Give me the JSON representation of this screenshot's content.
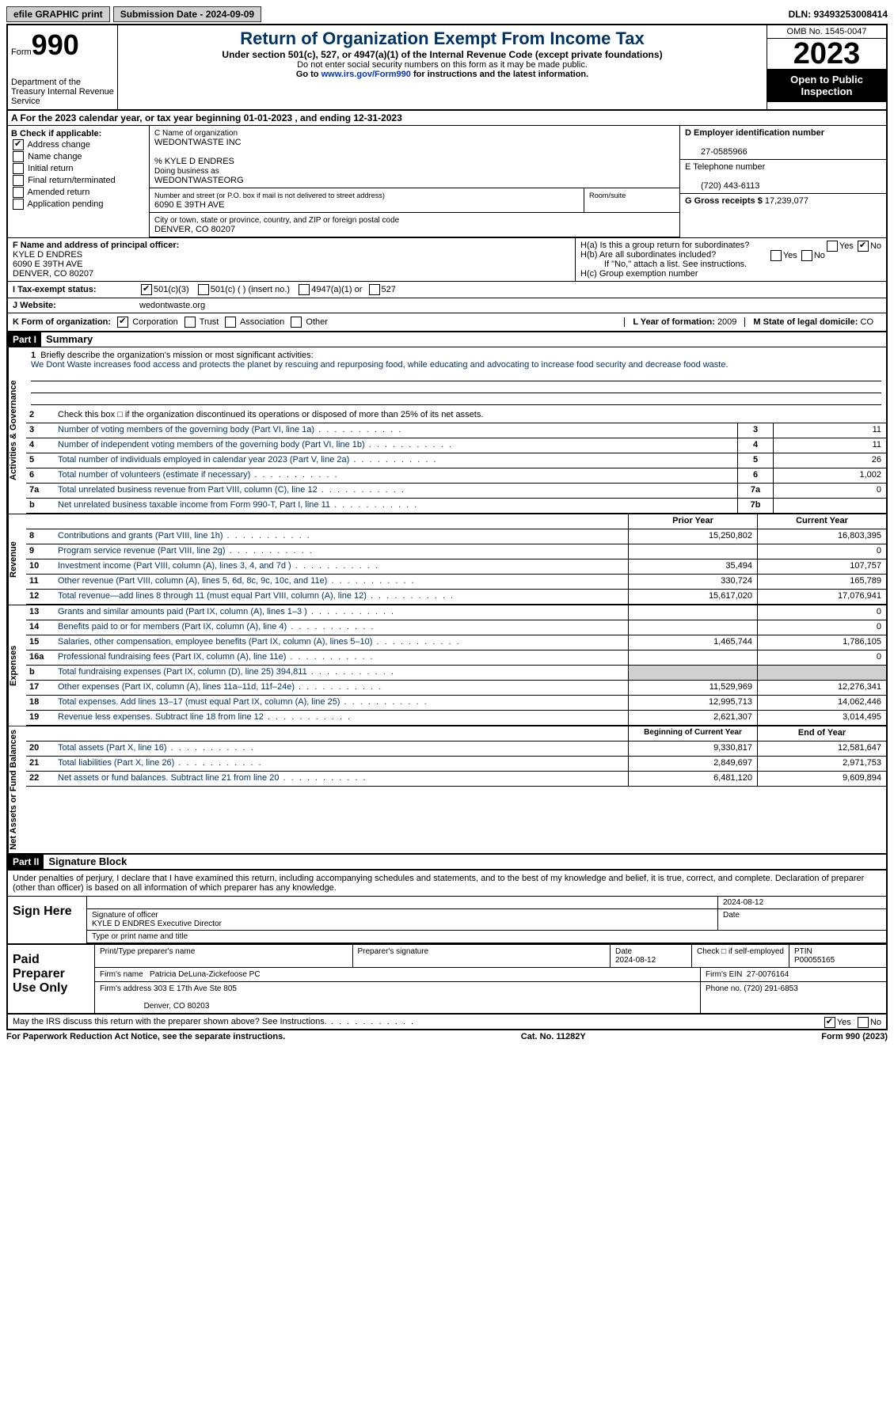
{
  "top": {
    "efile": "efile GRAPHIC print",
    "submission": "Submission Date - 2024-09-09",
    "dln": "DLN: 93493253008414"
  },
  "header": {
    "form_word": "Form",
    "form_num": "990",
    "dept": "Department of the Treasury Internal Revenue Service",
    "title": "Return of Organization Exempt From Income Tax",
    "sub1": "Under section 501(c), 527, or 4947(a)(1) of the Internal Revenue Code (except private foundations)",
    "sub2": "Do not enter social security numbers on this form as it may be made public.",
    "sub3_pre": "Go to ",
    "sub3_link": "www.irs.gov/Form990",
    "sub3_post": " for instructions and the latest information.",
    "omb": "OMB No. 1545-0047",
    "year": "2023",
    "open": "Open to Public Inspection"
  },
  "row_a": "A For the 2023 calendar year, or tax year beginning 01-01-2023    , and ending 12-31-2023",
  "b": {
    "label": "B Check if applicable:",
    "address_change": "Address change",
    "name_change": "Name change",
    "initial_return": "Initial return",
    "final_return": "Final return/terminated",
    "amended": "Amended return",
    "app_pending": "Application pending"
  },
  "c": {
    "name_label": "C Name of organization",
    "name": "WEDONTWASTE INC",
    "care_of": "% KYLE D ENDRES",
    "dba_label": "Doing business as",
    "dba": "WEDONTWASTEORG",
    "street_label": "Number and street (or P.O. box if mail is not delivered to street address)",
    "street": "6090 E 39TH AVE",
    "room_label": "Room/suite",
    "city_label": "City or town, state or province, country, and ZIP or foreign postal code",
    "city": "DENVER, CO  80207"
  },
  "d": {
    "label": "D Employer identification number",
    "value": "27-0585966"
  },
  "e": {
    "label": "E Telephone number",
    "value": "(720) 443-6113"
  },
  "g": {
    "label": "G Gross receipts $",
    "value": "17,239,077"
  },
  "f": {
    "label": "F Name and address of principal officer:",
    "name": "KYLE D ENDRES",
    "street": "6090 E 39TH AVE",
    "city": "DENVER, CO  80207"
  },
  "h": {
    "a": "H(a)  Is this a group return for subordinates?",
    "b": "H(b)  Are all subordinates included?",
    "note": "If \"No,\" attach a list. See instructions.",
    "c": "H(c)  Group exemption number"
  },
  "i": {
    "label": "I   Tax-exempt status:",
    "c3": "501(c)(3)",
    "c": "501(c) (  ) (insert no.)",
    "a1": "4947(a)(1) or",
    "s527": "527"
  },
  "j": {
    "label": "J   Website:",
    "value": "wedontwaste.org"
  },
  "k": {
    "label": "K Form of organization:",
    "corp": "Corporation",
    "trust": "Trust",
    "assoc": "Association",
    "other": "Other"
  },
  "l": {
    "label": "L Year of formation: ",
    "value": "2009"
  },
  "m": {
    "label": "M State of legal domicile: ",
    "value": "CO"
  },
  "part1": {
    "tag": "Part I",
    "title": "Summary"
  },
  "mission": {
    "num": "1",
    "label": "Briefly describe the organization's mission or most significant activities:",
    "text": "We Dont Waste increases food access and protects the planet by rescuing and repurposing food, while educating and advocating to increase food security and decrease food waste."
  },
  "line2": "Check this box □  if the organization discontinued its operations or disposed of more than 25% of its net assets.",
  "gov_rows": [
    {
      "n": "3",
      "t": "Number of voting members of the governing body (Part VI, line 1a)",
      "box": "3",
      "v": "11"
    },
    {
      "n": "4",
      "t": "Number of independent voting members of the governing body (Part VI, line 1b)",
      "box": "4",
      "v": "11"
    },
    {
      "n": "5",
      "t": "Total number of individuals employed in calendar year 2023 (Part V, line 2a)",
      "box": "5",
      "v": "26"
    },
    {
      "n": "6",
      "t": "Total number of volunteers (estimate if necessary)",
      "box": "6",
      "v": "1,002"
    },
    {
      "n": "7a",
      "t": "Total unrelated business revenue from Part VIII, column (C), line 12",
      "box": "7a",
      "v": "0"
    },
    {
      "n": "b",
      "t": "Net unrelated business taxable income from Form 990-T, Part I, line 11",
      "box": "7b",
      "v": ""
    }
  ],
  "rev_hdr": {
    "py": "Prior Year",
    "cy": "Current Year"
  },
  "rev_rows": [
    {
      "n": "8",
      "t": "Contributions and grants (Part VIII, line 1h)",
      "py": "15,250,802",
      "cy": "16,803,395"
    },
    {
      "n": "9",
      "t": "Program service revenue (Part VIII, line 2g)",
      "py": "",
      "cy": "0"
    },
    {
      "n": "10",
      "t": "Investment income (Part VIII, column (A), lines 3, 4, and 7d )",
      "py": "35,494",
      "cy": "107,757"
    },
    {
      "n": "11",
      "t": "Other revenue (Part VIII, column (A), lines 5, 6d, 8c, 9c, 10c, and 11e)",
      "py": "330,724",
      "cy": "165,789"
    },
    {
      "n": "12",
      "t": "Total revenue—add lines 8 through 11 (must equal Part VIII, column (A), line 12)",
      "py": "15,617,020",
      "cy": "17,076,941"
    }
  ],
  "exp_rows": [
    {
      "n": "13",
      "t": "Grants and similar amounts paid (Part IX, column (A), lines 1–3 )",
      "py": "",
      "cy": "0"
    },
    {
      "n": "14",
      "t": "Benefits paid to or for members (Part IX, column (A), line 4)",
      "py": "",
      "cy": "0"
    },
    {
      "n": "15",
      "t": "Salaries, other compensation, employee benefits (Part IX, column (A), lines 5–10)",
      "py": "1,465,744",
      "cy": "1,786,105"
    },
    {
      "n": "16a",
      "t": "Professional fundraising fees (Part IX, column (A), line 11e)",
      "py": "",
      "cy": "0"
    },
    {
      "n": "b",
      "t": "Total fundraising expenses (Part IX, column (D), line 25) 394,811",
      "py": "grey",
      "cy": "grey"
    },
    {
      "n": "17",
      "t": "Other expenses (Part IX, column (A), lines 11a–11d, 11f–24e)",
      "py": "11,529,969",
      "cy": "12,276,341"
    },
    {
      "n": "18",
      "t": "Total expenses. Add lines 13–17 (must equal Part IX, column (A), line 25)",
      "py": "12,995,713",
      "cy": "14,062,446"
    },
    {
      "n": "19",
      "t": "Revenue less expenses. Subtract line 18 from line 12",
      "py": "2,621,307",
      "cy": "3,014,495"
    }
  ],
  "net_hdr": {
    "py": "Beginning of Current Year",
    "cy": "End of Year"
  },
  "net_rows": [
    {
      "n": "20",
      "t": "Total assets (Part X, line 16)",
      "py": "9,330,817",
      "cy": "12,581,647"
    },
    {
      "n": "21",
      "t": "Total liabilities (Part X, line 26)",
      "py": "2,849,697",
      "cy": "2,971,753"
    },
    {
      "n": "22",
      "t": "Net assets or fund balances. Subtract line 21 from line 20",
      "py": "6,481,120",
      "cy": "9,609,894"
    }
  ],
  "part2": {
    "tag": "Part II",
    "title": "Signature Block"
  },
  "sig": {
    "declare": "Under penalties of perjury, I declare that I have examined this return, including accompanying schedules and statements, and to the best of my knowledge and belief, it is true, correct, and complete. Declaration of preparer (other than officer) is based on all information of which preparer has any knowledge.",
    "sign_here": "Sign Here",
    "date": "2024-08-12",
    "sig_officer_lbl": "Signature of officer",
    "officer": "KYLE D ENDRES  Executive Director",
    "type_lbl": "Type or print name and title",
    "date_lbl": "Date"
  },
  "paid": {
    "title": "Paid Preparer Use Only",
    "name_lbl": "Print/Type preparer's name",
    "sig_lbl": "Preparer's signature",
    "date_lbl": "Date",
    "date": "2024-08-12",
    "check_lbl": "Check □ if self-employed",
    "ptin_lbl": "PTIN",
    "ptin": "P00055165",
    "firm_name_lbl": "Firm's name",
    "firm_name": "Patricia DeLuna-Zickefoose PC",
    "firm_ein_lbl": "Firm's EIN",
    "firm_ein": "27-0076164",
    "firm_addr_lbl": "Firm's address",
    "firm_addr1": "303 E 17th Ave Ste 805",
    "firm_addr2": "Denver, CO  80203",
    "phone_lbl": "Phone no.",
    "phone": "(720) 291-6853"
  },
  "discuss": "May the IRS discuss this return with the preparer shown above? See Instructions.",
  "footer": {
    "left": "For Paperwork Reduction Act Notice, see the separate instructions.",
    "mid": "Cat. No. 11282Y",
    "right": "Form 990 (2023)"
  },
  "yn": {
    "yes": "Yes",
    "no": "No"
  }
}
